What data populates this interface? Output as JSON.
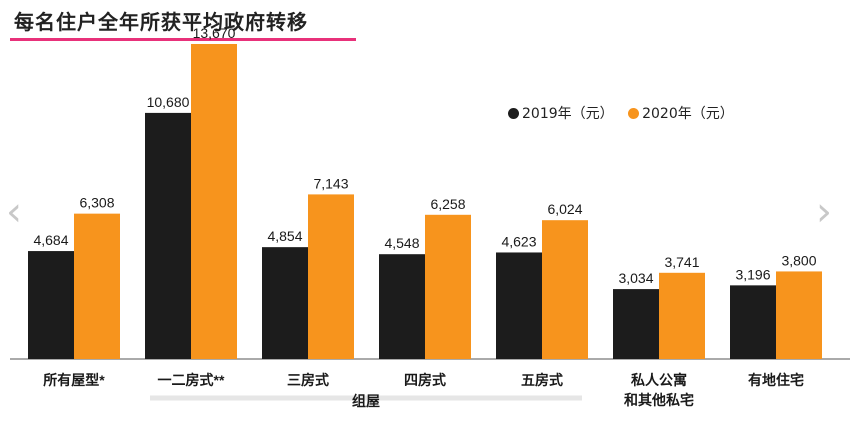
{
  "header": {
    "title": "每名住户全年所获平均政府转移"
  },
  "chart_data": {
    "type": "bar",
    "categories": [
      "所有屋型*",
      "一二房式**",
      "三房式",
      "四房式",
      "五房式",
      "私人公寓\n和其他私宅",
      "有地住宅"
    ],
    "group_label": "组屋",
    "series": [
      {
        "name": "2019年（元）",
        "color": "#1c1c1c",
        "values": [
          4684,
          10680,
          4854,
          4548,
          4623,
          3034,
          3196
        ]
      },
      {
        "name": "2020年（元）",
        "color": "#f7941d",
        "values": [
          6308,
          13670,
          7143,
          6258,
          6024,
          3741,
          3800
        ]
      }
    ],
    "value_labels": [
      [
        "4,684",
        "10,680",
        "4,854",
        "4,548",
        "4,623",
        "3,034",
        "3,196"
      ],
      [
        "6,308",
        "13,670",
        "7,143",
        "6,258",
        "6,024",
        "3,741",
        "3,800"
      ]
    ],
    "ylim": [
      0,
      13670
    ],
    "grid": false,
    "legend_position": "top-right"
  },
  "nav": {
    "prev_icon": "chevron-left-icon",
    "next_icon": "chevron-right-icon"
  }
}
